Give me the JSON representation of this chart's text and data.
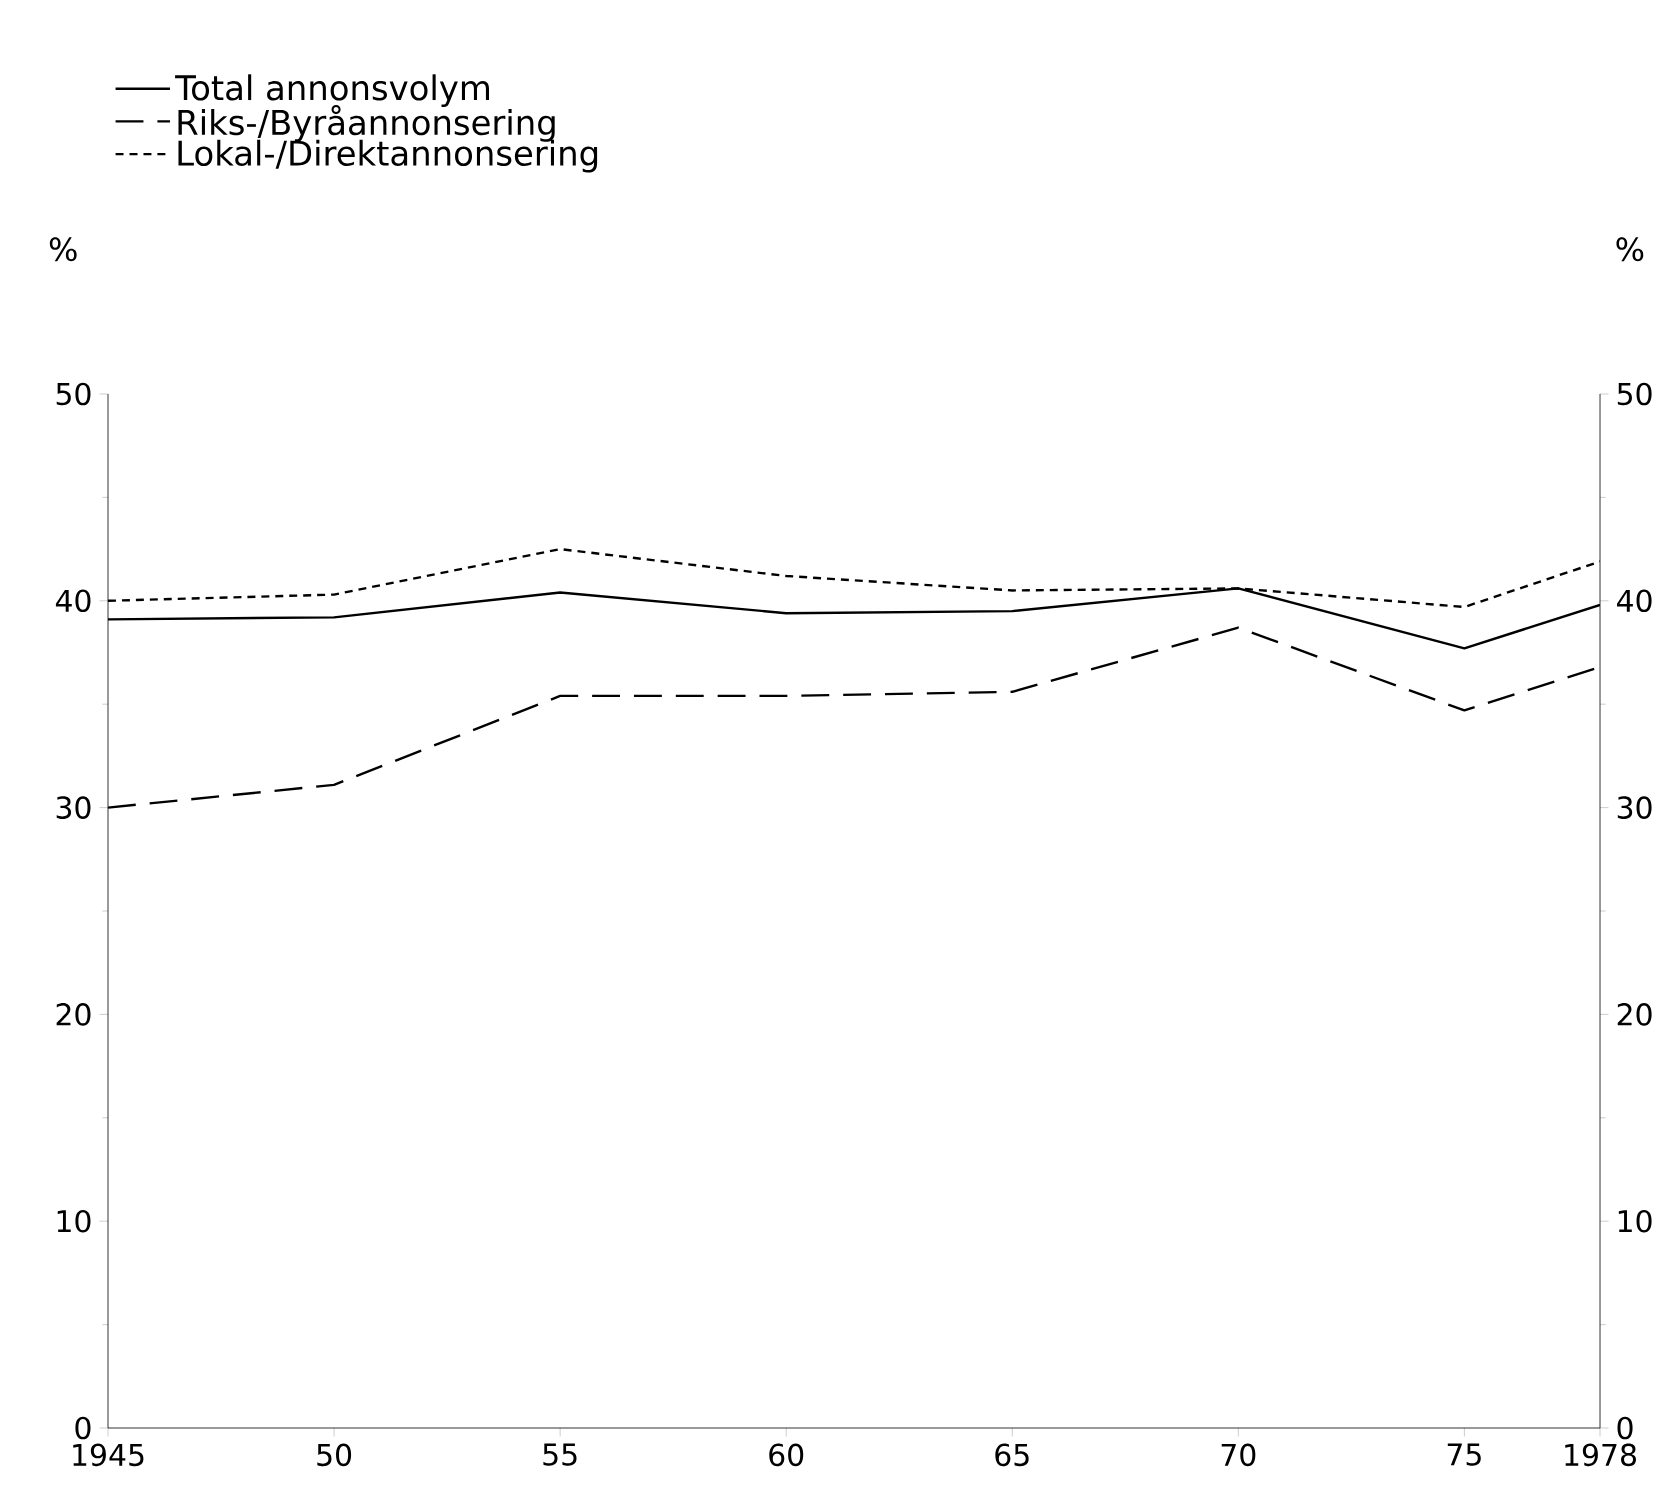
{
  "chart_data": {
    "type": "line",
    "ylabel": "%",
    "y2label": "%",
    "x": [
      1945,
      1950,
      1955,
      1960,
      1965,
      1970,
      1975,
      1978
    ],
    "xlim": [
      1945,
      1978
    ],
    "xticks": [
      1945,
      {
        "value": 1950,
        "label": "50"
      },
      {
        "value": 1955,
        "label": "55"
      },
      {
        "value": 1960,
        "label": "60"
      },
      {
        "value": 1965,
        "label": "65"
      },
      {
        "value": 1970,
        "label": "70"
      },
      {
        "value": 1975,
        "label": "75"
      },
      1978
    ],
    "ylim": [
      0,
      50
    ],
    "yticks": [
      0,
      10,
      20,
      30,
      40,
      50
    ],
    "y2lim": [
      0,
      50
    ],
    "y2ticks": [
      0,
      10,
      20,
      30,
      40,
      50
    ],
    "legend": "top left",
    "grid": false,
    "marker": "none",
    "series": [
      {
        "name": "Total annonsvolym",
        "color": "#000000",
        "line_style": "solid",
        "values": [
          39.1,
          39.2,
          40.4,
          39.4,
          39.5,
          40.6,
          37.7,
          39.8
        ]
      },
      {
        "name": "Riks-/Byråannonsering",
        "color": "#000000",
        "line_style": "dashed",
        "values": [
          30.0,
          31.1,
          35.4,
          35.4,
          35.6,
          38.7,
          34.7,
          36.8
        ]
      },
      {
        "name": "Lokal-/Direktannonsering",
        "color": "#000000",
        "line_style": "dotted",
        "values": [
          40.0,
          40.3,
          42.5,
          41.2,
          40.5,
          40.6,
          39.7,
          41.9
        ]
      }
    ]
  }
}
